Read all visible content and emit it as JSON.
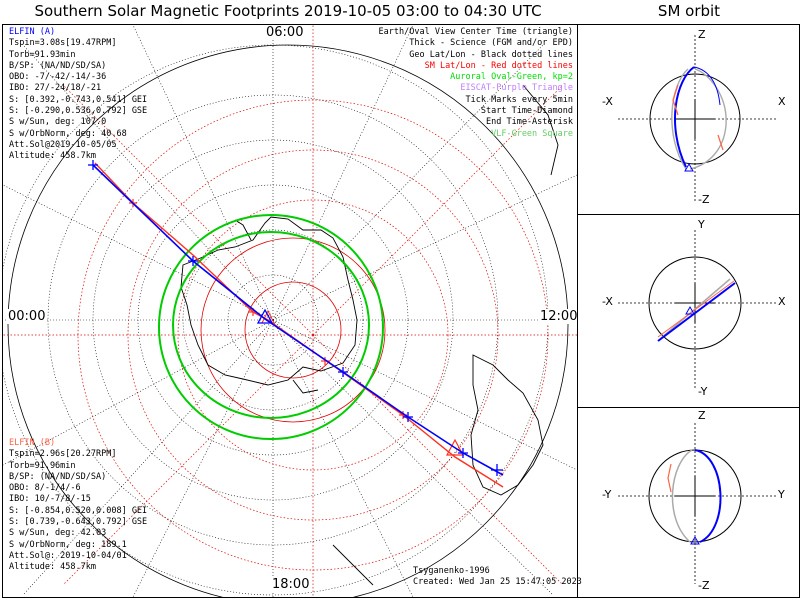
{
  "title": "Southern Solar Magnetic Footprints 2019-10-05 03:00 to 04:30 UTC",
  "orbit_title": "SM orbit",
  "time_labels": {
    "top": "06:00",
    "left": "00:00",
    "right": "12:00",
    "bottom": "18:00"
  },
  "elfin_a": {
    "name": "ELFIN (A)",
    "color": "#0000ff",
    "lines": [
      "Tspin=3.08s[19.47RPM]",
      "Torb=91.93min",
      "B/SP: (NA/ND/SD/SA)",
      "OBO: -7/-42/-14/-36",
      "IBO: 27/-24/18/-21",
      "S: [0.392,-0.743,0.541] GEI",
      "S: [-0.290,0.536,0.792] GSE",
      "S w/Sun, deg: 107.0",
      "S w/OrbNorm, deg: 40.68",
      "Att.Sol@2019-10-05/05",
      "Altitude: 458.7km"
    ]
  },
  "elfin_b": {
    "name": "ELFIN (B)",
    "color": "#ff6347",
    "lines": [
      "Tspin=2.96s[20.27RPM]",
      "Torb=91.96min",
      "B/SP: (NA/ND/SD/SA)",
      "OBO: 8/-1/4/-6",
      "IBO: 10/-7/8/-15",
      "S: [-0.854,0.520,0.008] GEI",
      "S: [0.739,-0.643,0.792] GSE",
      "S w/Sun, deg: 42.03",
      "S w/OrbNorm, deg: 189.1",
      "Att.Sol@: 2019-10-04/01",
      "Altitude: 458.7km"
    ]
  },
  "legend": [
    {
      "text": "Earth/Oval View Center Time (triangle)",
      "color": "#000000"
    },
    {
      "text": "Thick - Science (FGM and/or EPD)",
      "color": "#000000"
    },
    {
      "text": "Geo Lat/Lon - Black dotted lines",
      "color": "#000000"
    },
    {
      "text": "SM Lat/Lon - Red dotted lines",
      "color": "#ff0000"
    },
    {
      "text": "Auroral Oval-Green, kp=2",
      "color": "#00dd00"
    },
    {
      "text": "EISCAT-Purple Triangle",
      "color": "#c080ff"
    },
    {
      "text": "Tick Marks every 5min",
      "color": "#000000"
    },
    {
      "text": "Start Time-Diamond",
      "color": "#000000"
    },
    {
      "text": "End Time-Asterisk",
      "color": "#000000"
    },
    {
      "text": "VLF-Green Square",
      "color": "#66cc66"
    }
  ],
  "credit": "Tsyganenko-1996",
  "created": "Created: Wed Jan 25 15:47:05 2023",
  "orbit_panels": [
    {
      "top": "Z",
      "bottom": "-Z",
      "left": "-X",
      "right": "X"
    },
    {
      "top": "Y",
      "bottom": "-Y",
      "left": "-X",
      "right": "X"
    },
    {
      "top": "Z",
      "bottom": "-Z",
      "left": "-Y",
      "right": "Y"
    }
  ]
}
